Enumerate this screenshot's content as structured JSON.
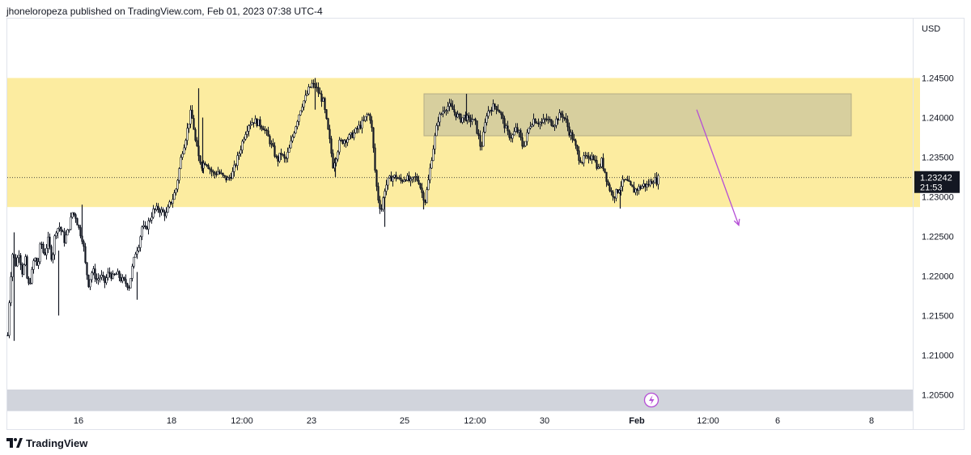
{
  "header": {
    "published_line": "jhoneloropeza published on TradingView.com, Feb 01, 2023 07:38 UTC-4"
  },
  "footer": {
    "brand": "TradingView"
  },
  "colors": {
    "candle": "#131722",
    "zone_yellow": "#fceca0",
    "supply_box": "#d7cf9e",
    "supply_box_border": "#b5ad86",
    "arrow": "#b54ed6",
    "bottom_pane": "#d1d4dc",
    "price_label_bg": "#131722"
  },
  "chart_data": {
    "type": "candlestick",
    "currency": "USD",
    "ylim": [
      1.203,
      1.2525
    ],
    "yticks": [
      "1.24500",
      "1.24000",
      "1.23500",
      "1.23000",
      "1.22500",
      "1.22000",
      "1.21500",
      "1.21000",
      "1.20500"
    ],
    "x_tick_labels": [
      {
        "label": "16",
        "bold": false
      },
      {
        "label": "18",
        "bold": false
      },
      {
        "label": "12:00",
        "bold": false
      },
      {
        "label": "23",
        "bold": false
      },
      {
        "label": "25",
        "bold": false
      },
      {
        "label": "12:00",
        "bold": false
      },
      {
        "label": "30",
        "bold": false
      },
      {
        "label": "Feb",
        "bold": true
      },
      {
        "label": "12:00",
        "bold": false
      },
      {
        "label": "6",
        "bold": false
      },
      {
        "label": "8",
        "bold": false
      }
    ],
    "last_price": 1.23242,
    "last_price_label": "1.23242",
    "countdown_label": "21:53",
    "series_path": [
      [
        0,
        1.2125
      ],
      [
        3,
        1.219
      ],
      [
        6,
        1.2228
      ],
      [
        10,
        1.2215
      ],
      [
        14,
        1.223
      ],
      [
        18,
        1.2205
      ],
      [
        22,
        1.222
      ],
      [
        25,
        1.2185
      ],
      [
        29,
        1.2198
      ],
      [
        33,
        1.2225
      ],
      [
        37,
        1.221
      ],
      [
        41,
        1.2245
      ],
      [
        45,
        1.2225
      ],
      [
        50,
        1.2245
      ],
      [
        55,
        1.222
      ],
      [
        59,
        1.2258
      ],
      [
        64,
        1.2262
      ],
      [
        68,
        1.2252
      ],
      [
        70,
        1.2245
      ],
      [
        75,
        1.2258
      ],
      [
        80,
        1.228
      ],
      [
        84,
        1.2275
      ],
      [
        88,
        1.226
      ],
      [
        93,
        1.2245
      ],
      [
        96,
        1.2215
      ],
      [
        100,
        1.219
      ],
      [
        105,
        1.2208
      ],
      [
        110,
        1.2195
      ],
      [
        115,
        1.22
      ],
      [
        120,
        1.2192
      ],
      [
        125,
        1.2205
      ],
      [
        130,
        1.2198
      ],
      [
        135,
        1.2203
      ],
      [
        140,
        1.2196
      ],
      [
        145,
        1.2192
      ],
      [
        150,
        1.2187
      ],
      [
        154,
        1.221
      ],
      [
        158,
        1.223
      ],
      [
        162,
        1.224
      ],
      [
        166,
        1.2262
      ],
      [
        170,
        1.2258
      ],
      [
        175,
        1.227
      ],
      [
        180,
        1.2282
      ],
      [
        186,
        1.2285
      ],
      [
        192,
        1.228
      ],
      [
        196,
        1.2278
      ],
      [
        200,
        1.229
      ],
      [
        204,
        1.2298
      ],
      [
        208,
        1.231
      ],
      [
        212,
        1.2335
      ],
      [
        215,
        1.2355
      ],
      [
        219,
        1.237
      ],
      [
        223,
        1.239
      ],
      [
        226,
        1.2405
      ],
      [
        229,
        1.2395
      ],
      [
        232,
        1.237
      ],
      [
        236,
        1.235
      ],
      [
        240,
        1.234
      ],
      [
        245,
        1.2345
      ],
      [
        250,
        1.2335
      ],
      [
        255,
        1.2328
      ],
      [
        260,
        1.2332
      ],
      [
        266,
        1.2325
      ],
      [
        272,
        1.2322
      ],
      [
        278,
        1.233
      ],
      [
        283,
        1.2345
      ],
      [
        288,
        1.2362
      ],
      [
        293,
        1.238
      ],
      [
        298,
        1.2392
      ],
      [
        304,
        1.2396
      ],
      [
        310,
        1.2393
      ],
      [
        316,
        1.2388
      ],
      [
        322,
        1.2375
      ],
      [
        328,
        1.236
      ],
      [
        333,
        1.2345
      ],
      [
        338,
        1.2355
      ],
      [
        343,
        1.2345
      ],
      [
        348,
        1.236
      ],
      [
        353,
        1.238
      ],
      [
        358,
        1.2398
      ],
      [
        363,
        1.2415
      ],
      [
        368,
        1.2425
      ],
      [
        372,
        1.2435
      ],
      [
        376,
        1.2442
      ],
      [
        381,
        1.2438
      ],
      [
        386,
        1.2428
      ],
      [
        390,
        1.242
      ],
      [
        394,
        1.2395
      ],
      [
        398,
        1.237
      ],
      [
        402,
        1.234
      ],
      [
        406,
        1.2352
      ],
      [
        410,
        1.2368
      ],
      [
        416,
        1.2372
      ],
      [
        422,
        1.2375
      ],
      [
        428,
        1.238
      ],
      [
        434,
        1.2388
      ],
      [
        440,
        1.2395
      ],
      [
        445,
        1.2405
      ],
      [
        449,
        1.2398
      ],
      [
        452,
        1.236
      ],
      [
        455,
        1.232
      ],
      [
        459,
        1.229
      ],
      [
        462,
        1.2285
      ],
      [
        466,
        1.231
      ],
      [
        470,
        1.232
      ],
      [
        475,
        1.2325
      ],
      [
        480,
        1.2325
      ],
      [
        486,
        1.232
      ],
      [
        492,
        1.2325
      ],
      [
        498,
        1.2318
      ],
      [
        503,
        1.2325
      ],
      [
        508,
        1.232
      ],
      [
        512,
        1.2305
      ],
      [
        516,
        1.2295
      ],
      [
        520,
        1.232
      ],
      [
        524,
        1.235
      ],
      [
        528,
        1.2375
      ],
      [
        532,
        1.2398
      ],
      [
        536,
        1.2405
      ],
      [
        540,
        1.2412
      ],
      [
        545,
        1.2415
      ],
      [
        550,
        1.241
      ],
      [
        555,
        1.2403
      ],
      [
        560,
        1.2398
      ],
      [
        565,
        1.2402
      ],
      [
        570,
        1.2396
      ],
      [
        574,
        1.2398
      ],
      [
        578,
        1.2392
      ],
      [
        582,
        1.2375
      ],
      [
        585,
        1.236
      ],
      [
        588,
        1.2378
      ],
      [
        592,
        1.2405
      ],
      [
        597,
        1.2412
      ],
      [
        603,
        1.2415
      ],
      [
        608,
        1.2408
      ],
      [
        613,
        1.2393
      ],
      [
        618,
        1.238
      ],
      [
        623,
        1.2375
      ],
      [
        628,
        1.2385
      ],
      [
        632,
        1.238
      ],
      [
        636,
        1.2365
      ],
      [
        640,
        1.237
      ],
      [
        645,
        1.239
      ],
      [
        650,
        1.2398
      ],
      [
        655,
        1.2395
      ],
      [
        660,
        1.2393
      ],
      [
        665,
        1.2398
      ],
      [
        670,
        1.2395
      ],
      [
        675,
        1.2392
      ],
      [
        680,
        1.24
      ],
      [
        685,
        1.2405
      ],
      [
        690,
        1.2395
      ],
      [
        694,
        1.2382
      ],
      [
        698,
        1.2375
      ],
      [
        702,
        1.2362
      ],
      [
        706,
        1.235
      ],
      [
        710,
        1.2345
      ],
      [
        714,
        1.235
      ],
      [
        718,
        1.2345
      ],
      [
        722,
        1.2355
      ],
      [
        726,
        1.2345
      ],
      [
        730,
        1.2335
      ],
      [
        734,
        1.2345
      ],
      [
        738,
        1.2332
      ],
      [
        742,
        1.2315
      ],
      [
        746,
        1.2305
      ],
      [
        750,
        1.2302
      ],
      [
        754,
        1.2308
      ],
      [
        758,
        1.2315
      ],
      [
        762,
        1.232
      ],
      [
        766,
        1.2318
      ],
      [
        770,
        1.2312
      ],
      [
        774,
        1.2308
      ],
      [
        778,
        1.231
      ],
      [
        782,
        1.2312
      ],
      [
        786,
        1.2315
      ],
      [
        790,
        1.2314
      ],
      [
        794,
        1.2318
      ],
      [
        798,
        1.2322
      ],
      [
        802,
        1.232
      ],
      [
        805,
        1.23242
      ]
    ],
    "spikes": [
      {
        "x": 8,
        "high": 1.2255,
        "low": 1.2118
      },
      {
        "x": 63,
        "high": 1.2232,
        "low": 1.215
      },
      {
        "x": 92,
        "high": 1.229,
        "low": 1.224
      },
      {
        "x": 160,
        "high": 1.2205,
        "low": 1.217
      },
      {
        "x": 236,
        "high": 1.2437,
        "low": 1.2345
      },
      {
        "x": 241,
        "high": 1.24,
        "low": 1.233
      },
      {
        "x": 380,
        "high": 1.245,
        "low": 1.241
      },
      {
        "x": 405,
        "high": 1.235,
        "low": 1.2325
      },
      {
        "x": 466,
        "high": 1.23,
        "low": 1.2262
      },
      {
        "x": 514,
        "high": 1.2305,
        "low": 1.2284
      },
      {
        "x": 567,
        "high": 1.243,
        "low": 1.2395
      },
      {
        "x": 757,
        "high": 1.2312,
        "low": 1.2285
      }
    ],
    "zones": [
      {
        "kind": "yellow-range",
        "x_start": 0,
        "x_end": 1128,
        "y_top": 1.245,
        "y_bottom": 1.2287
      },
      {
        "kind": "supply-box",
        "x_start": 515,
        "x_end": 1043,
        "y_top": 1.243,
        "y_bottom": 1.2377
      }
    ],
    "arrow": {
      "x_start": 852,
      "y_start": 1.241,
      "x_end": 904,
      "y_end": 1.2264
    },
    "grid": false,
    "legend": false
  }
}
